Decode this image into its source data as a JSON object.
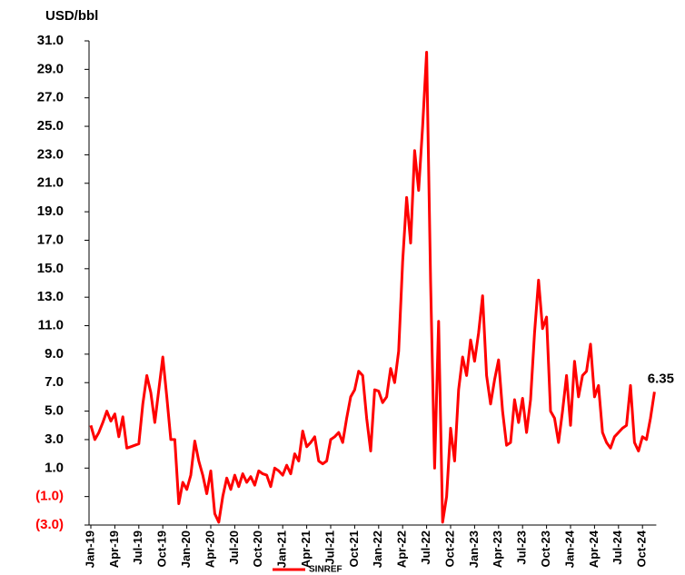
{
  "chart_data": {
    "type": "line",
    "y_label": "USD/bbl",
    "categories": [
      "Jan-19",
      null,
      null,
      null,
      null,
      null,
      "Apr-19",
      null,
      null,
      null,
      null,
      null,
      "Jul-19",
      null,
      null,
      null,
      null,
      null,
      "Oct-19",
      null,
      null,
      null,
      null,
      null,
      "Jan-20",
      null,
      null,
      null,
      null,
      null,
      "Apr-20",
      null,
      null,
      null,
      null,
      null,
      "Jul-20",
      null,
      null,
      null,
      null,
      null,
      "Oct-20",
      null,
      null,
      null,
      null,
      null,
      "Jan-21",
      null,
      null,
      null,
      null,
      null,
      "Apr-21",
      null,
      null,
      null,
      null,
      null,
      "Jul-21",
      null,
      null,
      null,
      null,
      null,
      "Oct-21",
      null,
      null,
      null,
      null,
      null,
      "Jan-22",
      null,
      null,
      null,
      null,
      null,
      "Apr-22",
      null,
      null,
      null,
      null,
      null,
      "Jul-22",
      null,
      null,
      null,
      null,
      null,
      "Oct-22",
      null,
      null,
      null,
      null,
      null,
      "Jan-23",
      null,
      null,
      null,
      null,
      null,
      "Apr-23",
      null,
      null,
      null,
      null,
      null,
      "Jul-23",
      null,
      null,
      null,
      null,
      null,
      "Oct-23",
      null,
      null,
      null,
      null,
      null,
      "Jan-24",
      null,
      null,
      null,
      null,
      null,
      "Apr-24",
      null,
      null,
      null,
      null,
      null,
      "Jul-24",
      null,
      null,
      null,
      null,
      null,
      "Oct-24",
      null,
      null,
      null
    ],
    "series": [
      {
        "name": "SINREF",
        "color": "#ff0000",
        "values": [
          4.0,
          3.0,
          3.5,
          4.2,
          5.0,
          4.3,
          4.8,
          3.2,
          4.6,
          2.4,
          2.5,
          2.6,
          2.7,
          5.5,
          7.5,
          6.3,
          4.2,
          6.5,
          8.8,
          6.0,
          3.0,
          3.0,
          -1.5,
          0.0,
          -0.5,
          0.5,
          2.9,
          1.5,
          0.5,
          -0.8,
          0.8,
          -2.2,
          -2.8,
          -1.0,
          0.3,
          -0.5,
          0.5,
          -0.3,
          0.6,
          0.0,
          0.4,
          -0.2,
          0.8,
          0.6,
          0.5,
          -0.3,
          1.0,
          0.8,
          0.5,
          1.2,
          0.6,
          2.0,
          1.5,
          3.6,
          2.5,
          2.8,
          3.2,
          1.5,
          1.3,
          1.5,
          3.0,
          3.2,
          3.5,
          2.8,
          4.5,
          6.0,
          6.5,
          7.8,
          7.5,
          4.5,
          2.2,
          6.5,
          6.4,
          5.6,
          6.0,
          8.0,
          7.0,
          9.2,
          15.5,
          20.0,
          16.8,
          23.3,
          20.5,
          25.0,
          30.2,
          14.0,
          1.0,
          11.3,
          -2.8,
          -1.0,
          3.8,
          1.5,
          6.5,
          8.8,
          7.5,
          10.0,
          8.5,
          10.5,
          13.1,
          7.5,
          5.5,
          7.2,
          8.6,
          5.0,
          2.6,
          2.8,
          5.8,
          4.2,
          5.9,
          3.5,
          5.8,
          10.5,
          14.2,
          10.8,
          11.6,
          5.0,
          4.5,
          2.8,
          5.0,
          7.5,
          4.0,
          8.5,
          6.0,
          7.5,
          7.8,
          9.7,
          6.0,
          6.8,
          3.5,
          2.8,
          2.4,
          3.2,
          3.5,
          3.8,
          4.0,
          6.8,
          2.8,
          2.2,
          3.2,
          3.0,
          4.5,
          6.35
        ]
      }
    ],
    "ylim": [
      -3,
      31
    ],
    "yticks": [
      {
        "value": 31,
        "label": "31.0"
      },
      {
        "value": 29,
        "label": "29.0"
      },
      {
        "value": 27,
        "label": "27.0"
      },
      {
        "value": 25,
        "label": "25.0"
      },
      {
        "value": 23,
        "label": "23.0"
      },
      {
        "value": 21,
        "label": "21.0"
      },
      {
        "value": 19,
        "label": "19.0"
      },
      {
        "value": 17,
        "label": "17.0"
      },
      {
        "value": 15,
        "label": "15.0"
      },
      {
        "value": 13,
        "label": "13.0"
      },
      {
        "value": 11,
        "label": "11.0"
      },
      {
        "value": 9,
        "label": "9.0"
      },
      {
        "value": 7,
        "label": "7.0"
      },
      {
        "value": 5,
        "label": "5.0"
      },
      {
        "value": 3,
        "label": "3.0"
      },
      {
        "value": 1,
        "label": "1.0"
      },
      {
        "value": -1,
        "label": "(1.0)"
      },
      {
        "value": -3,
        "label": "(3.0)"
      }
    ],
    "negative_color": "#ff0000",
    "legend": "bottom"
  }
}
